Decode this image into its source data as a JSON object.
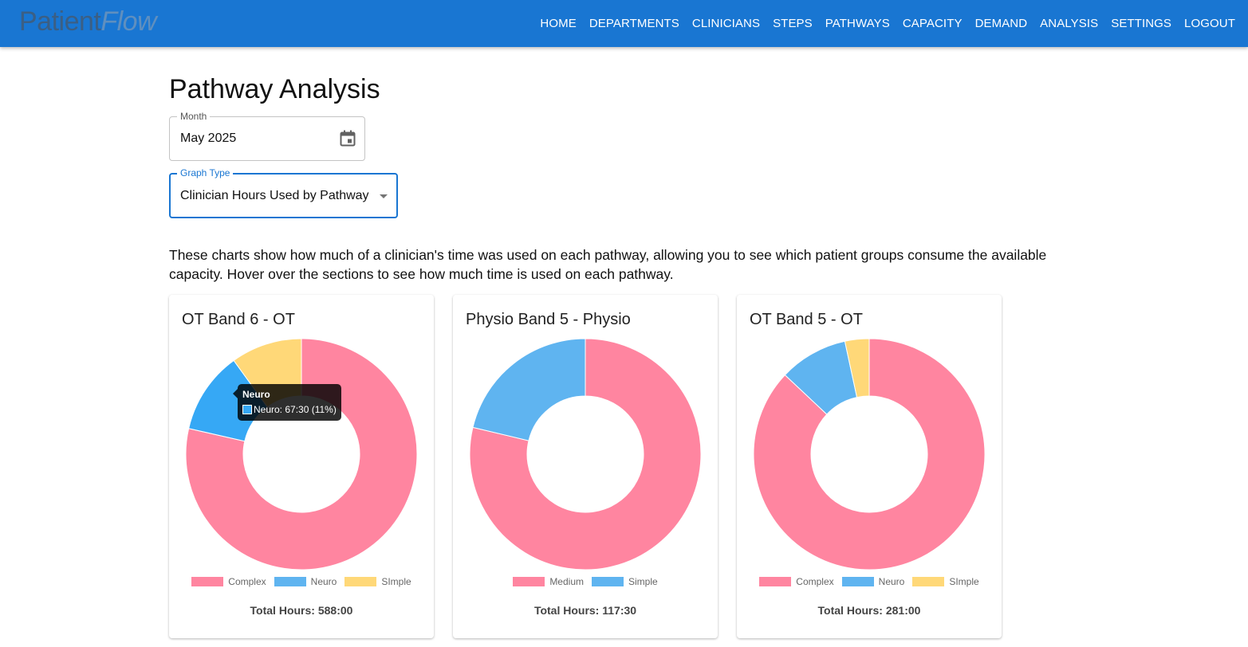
{
  "app": {
    "logo_part1": "Patient",
    "logo_part2": "Flow"
  },
  "nav": [
    "HOME",
    "DEPARTMENTS",
    "CLINICIANS",
    "STEPS",
    "PATHWAYS",
    "CAPACITY",
    "DEMAND",
    "ANALYSIS",
    "SETTINGS",
    "LOGOUT"
  ],
  "page": {
    "title": "Pathway Analysis"
  },
  "month": {
    "label": "Month",
    "value": "May 2025",
    "icon": "calendar-icon"
  },
  "graph_type": {
    "label": "Graph Type",
    "value": "Clinician Hours Used by Pathway",
    "icon": "chevron-down-icon"
  },
  "description": "These charts show how much of a clinician's time was used on each pathway, allowing you to see which patient groups consume the available capacity. Hover over the sections to see how much time is used on each pathway.",
  "colors": {
    "pink": "#ff85a0",
    "blue": "#5fb4f0",
    "blue_hover": "#36a8f5",
    "yellow": "#ffd878",
    "appbar": "#1976d2"
  },
  "tooltip": {
    "title": "Neuro",
    "body": "Neuro: 67:30 (11%)"
  },
  "chart_data": [
    {
      "type": "pie",
      "title": "OT Band 6 - OT",
      "labels": [
        "Complex",
        "Neuro",
        "SImple"
      ],
      "values": [
        462.0,
        67.5,
        58.5
      ],
      "colors": [
        "#ff85a0",
        "#36a8f5",
        "#ffd878"
      ],
      "total_label": "Total Hours: 588:00"
    },
    {
      "type": "pie",
      "title": "Physio Band 5 - Physio",
      "labels": [
        "Medium",
        "Simple"
      ],
      "values": [
        92.5,
        25.0
      ],
      "colors": [
        "#ff85a0",
        "#5fb4f0"
      ],
      "total_label": "Total Hours: 117:30"
    },
    {
      "type": "pie",
      "title": "OT Band 5 - OT",
      "labels": [
        "Complex",
        "Neuro",
        "SImple"
      ],
      "values": [
        244.5,
        27.0,
        9.5
      ],
      "colors": [
        "#ff85a0",
        "#5fb4f0",
        "#ffd878"
      ],
      "total_label": "Total Hours: 281:00"
    }
  ]
}
